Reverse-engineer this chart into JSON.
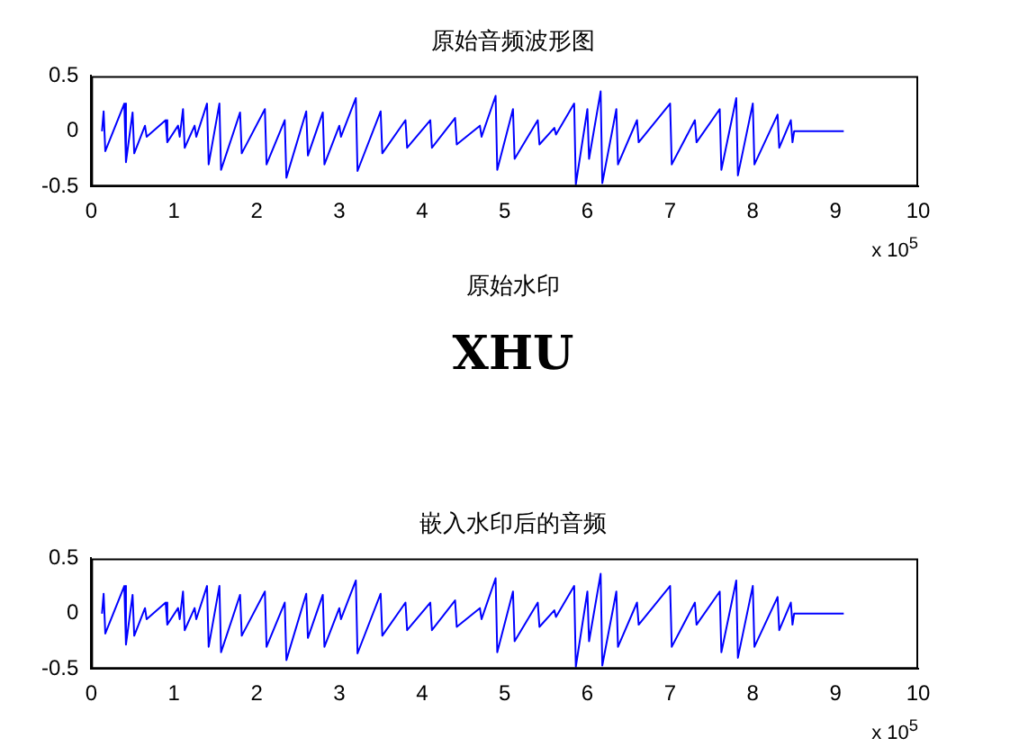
{
  "chart_data": [
    {
      "type": "line",
      "title": "原始音频波形图",
      "annotations": [
        "x 10$^{5}$"
      ],
      "xlim": [
        0,
        10
      ],
      "xticks": [
        0,
        1,
        2,
        3,
        4,
        5,
        6,
        7,
        8,
        9,
        10
      ],
      "ylim": [
        -0.5,
        0.5
      ],
      "yticks": [
        -0.5,
        0,
        0.5
      ],
      "x": [
        0.13,
        0.15,
        0.17,
        0.4,
        0.42,
        0.5,
        0.52,
        0.65,
        0.67,
        0.9,
        0.92,
        1.05,
        1.07,
        1.11,
        1.13,
        1.25,
        1.27,
        1.4,
        1.42,
        1.55,
        1.57,
        1.8,
        1.82,
        2.1,
        2.12,
        2.34,
        2.36,
        2.6,
        2.62,
        2.8,
        2.82,
        3.0,
        3.02,
        3.2,
        3.22,
        3.5,
        3.52,
        3.8,
        3.82,
        4.1,
        4.12,
        4.4,
        4.42,
        4.7,
        4.72,
        4.89,
        4.91,
        5.1,
        5.12,
        5.4,
        5.42,
        5.6,
        5.62,
        5.84,
        5.86,
        6.0,
        6.02,
        6.16,
        6.18,
        6.35,
        6.37,
        6.6,
        6.62,
        7.0,
        7.02,
        7.3,
        7.32,
        7.6,
        7.62,
        7.8,
        7.82,
        8.0,
        8.02,
        8.3,
        8.32,
        8.46,
        8.48,
        8.5,
        9.1
      ],
      "series": [
        {
          "color": "#0000ff",
          "values": [
            0,
            0.18,
            -0.18,
            0.25,
            -0.28,
            0.17,
            -0.2,
            0.05,
            -0.05,
            0.1,
            -0.1,
            0.05,
            -0.05,
            0.2,
            -0.15,
            0.05,
            -0.05,
            0.25,
            -0.3,
            0.25,
            -0.35,
            0.17,
            -0.2,
            0.2,
            -0.3,
            0.1,
            -0.42,
            0.18,
            -0.22,
            0.17,
            -0.3,
            0.05,
            -0.05,
            0.3,
            -0.36,
            0.18,
            -0.2,
            0.1,
            -0.15,
            0.1,
            -0.15,
            0.12,
            -0.12,
            0.05,
            -0.05,
            0.32,
            -0.35,
            0.2,
            -0.25,
            0.1,
            -0.12,
            0.03,
            -0.03,
            0.25,
            -0.48,
            0.2,
            -0.25,
            0.36,
            -0.47,
            0.2,
            -0.3,
            0.1,
            -0.1,
            0.25,
            -0.3,
            0.1,
            -0.1,
            0.2,
            -0.35,
            0.3,
            -0.4,
            0.25,
            -0.3,
            0.15,
            -0.15,
            0.1,
            -0.1,
            0,
            0
          ]
        }
      ]
    },
    {
      "type": "other",
      "title": "原始水印",
      "annotations": [
        "XHU"
      ]
    },
    {
      "type": "line",
      "title": "嵌入水印后的音频",
      "annotations": [
        "x 10$^{5}$"
      ],
      "xlim": [
        0,
        10
      ],
      "xticks": [
        0,
        1,
        2,
        3,
        4,
        5,
        6,
        7,
        8,
        9,
        10
      ],
      "ylim": [
        -0.5,
        0.5
      ],
      "yticks": [
        -0.5,
        0,
        0.5
      ],
      "x": [
        0.13,
        0.15,
        0.17,
        0.4,
        0.42,
        0.5,
        0.52,
        0.65,
        0.67,
        0.9,
        0.92,
        1.05,
        1.07,
        1.11,
        1.13,
        1.25,
        1.27,
        1.4,
        1.42,
        1.55,
        1.57,
        1.8,
        1.82,
        2.1,
        2.12,
        2.34,
        2.36,
        2.6,
        2.62,
        2.8,
        2.82,
        3.0,
        3.02,
        3.2,
        3.22,
        3.5,
        3.52,
        3.8,
        3.82,
        4.1,
        4.12,
        4.4,
        4.42,
        4.7,
        4.72,
        4.89,
        4.91,
        5.1,
        5.12,
        5.4,
        5.42,
        5.6,
        5.62,
        5.84,
        5.86,
        6.0,
        6.02,
        6.16,
        6.18,
        6.35,
        6.37,
        6.6,
        6.62,
        7.0,
        7.02,
        7.3,
        7.32,
        7.6,
        7.62,
        7.8,
        7.82,
        8.0,
        8.02,
        8.3,
        8.32,
        8.46,
        8.48,
        8.5,
        9.1
      ],
      "series": [
        {
          "color": "#0000ff",
          "values": [
            0,
            0.18,
            -0.18,
            0.25,
            -0.28,
            0.17,
            -0.2,
            0.05,
            -0.05,
            0.1,
            -0.1,
            0.05,
            -0.05,
            0.2,
            -0.15,
            0.05,
            -0.05,
            0.25,
            -0.3,
            0.25,
            -0.35,
            0.17,
            -0.2,
            0.2,
            -0.3,
            0.1,
            -0.42,
            0.18,
            -0.22,
            0.17,
            -0.3,
            0.05,
            -0.05,
            0.3,
            -0.36,
            0.18,
            -0.2,
            0.1,
            -0.15,
            0.1,
            -0.15,
            0.12,
            -0.12,
            0.05,
            -0.05,
            0.32,
            -0.35,
            0.2,
            -0.25,
            0.1,
            -0.12,
            0.03,
            -0.03,
            0.25,
            -0.48,
            0.2,
            -0.25,
            0.36,
            -0.47,
            0.2,
            -0.3,
            0.1,
            -0.1,
            0.25,
            -0.3,
            0.1,
            -0.1,
            0.2,
            -0.35,
            0.3,
            -0.4,
            0.25,
            -0.3,
            0.15,
            -0.15,
            0.1,
            -0.1,
            0,
            0
          ]
        }
      ]
    }
  ]
}
